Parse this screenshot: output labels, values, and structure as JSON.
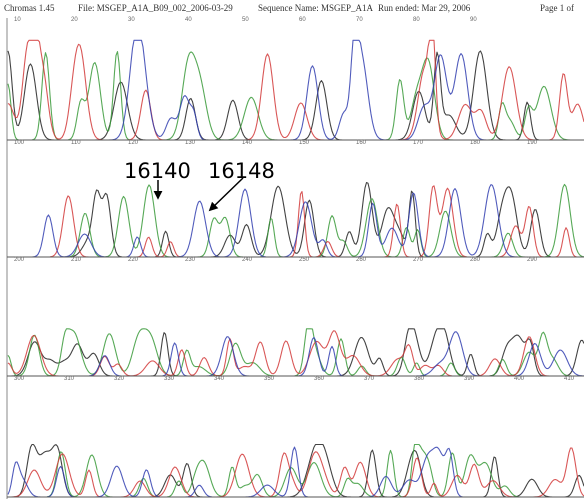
{
  "header": {
    "program": "Chromas 1.45",
    "file": "File: MSGEP_A1A_B09_002_2006-03-29",
    "sequence": "Sequence Name: MSGEP_A1A",
    "run": "Run ended: Mar 29, 2006",
    "page": "Page 1 of"
  },
  "rows": [
    {
      "scale": [
        "10",
        "20",
        "30",
        "40",
        "50",
        "60",
        "70",
        "80",
        "90"
      ]
    },
    {
      "scale": [
        "100",
        "110",
        "120",
        "130",
        "140",
        "150",
        "160",
        "170",
        "180",
        "190"
      ]
    },
    {
      "scale": [
        "200",
        "210",
        "220",
        "230",
        "240",
        "250",
        "260",
        "270",
        "280",
        "290"
      ]
    },
    {
      "scale": [
        "300",
        "310",
        "320",
        "330",
        "340",
        "350",
        "360",
        "370",
        "380",
        "390",
        "400",
        "410"
      ]
    }
  ],
  "annotations": [
    {
      "label": "16140"
    },
    {
      "label": "16148"
    }
  ]
}
